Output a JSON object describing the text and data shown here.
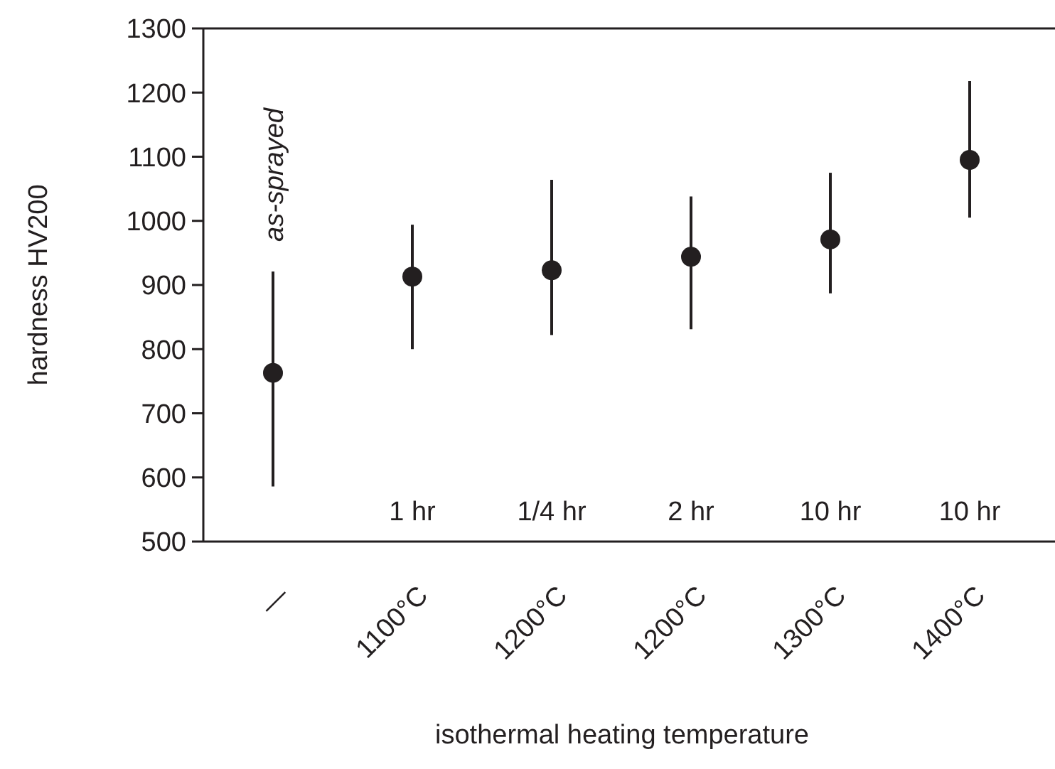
{
  "chart_data": {
    "type": "scatter",
    "xlabel": "isothermal heating temperature",
    "ylabel": "hardness HV200",
    "categories": [
      "—",
      "1100°C",
      "1200°C",
      "1200°C",
      "1300°C",
      "1400°C"
    ],
    "values": [
      763,
      913,
      923,
      944,
      971,
      1095
    ],
    "errors": [
      [
        586,
        921
      ],
      [
        800,
        994
      ],
      [
        822,
        1064
      ],
      [
        831,
        1038
      ],
      [
        887,
        1075
      ],
      [
        1005,
        1218
      ]
    ],
    "color": "#231f20",
    "marker": "circle",
    "ylim": [
      500,
      1300
    ],
    "yticks": [
      500,
      600,
      700,
      800,
      900,
      1000,
      1100,
      1200,
      1300
    ],
    "grid": false,
    "annotations": [
      "as-sprayed",
      "1 hr",
      "1/4 hr",
      "2 hr",
      "10 hr",
      "10 hr"
    ]
  }
}
